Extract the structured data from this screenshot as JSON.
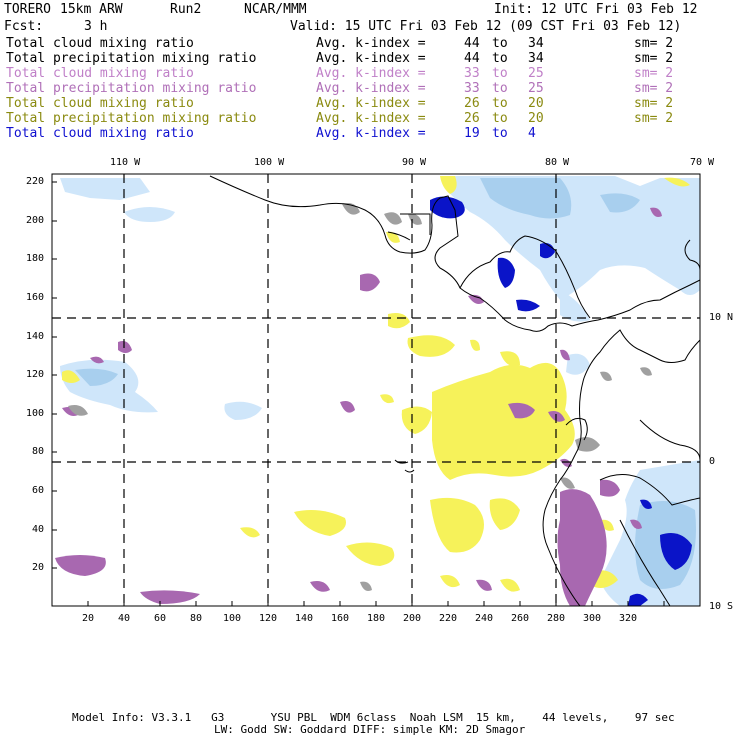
{
  "header": {
    "model": "TORERO",
    "resolution": "15km ARW",
    "run": "Run2",
    "org": "NCAR/MMM",
    "init": "Init: 12 UTC Fri 03 Feb 12",
    "fcst_label": "Fcst:",
    "fcst_value": "3 h",
    "valid": "Valid: 15 UTC Fri 03 Feb 12 (09 CST Fri 03 Feb 12)"
  },
  "legend": [
    {
      "field": "Total cloud mixing ratio",
      "kindex": "Avg. k-index =",
      "from": "44",
      "to_word": "to",
      "to": "34",
      "sm": "sm= 2",
      "color": "#000000"
    },
    {
      "field": "Total precipitation mixing ratio",
      "kindex": "Avg. k-index =",
      "from": "44",
      "to_word": "to",
      "to": "34",
      "sm": "sm= 2",
      "color": "#000000"
    },
    {
      "field": "Total cloud mixing ratio",
      "kindex": "Avg. k-index =",
      "from": "33",
      "to_word": "to",
      "to": "25",
      "sm": "sm= 2",
      "color": "#c080c8"
    },
    {
      "field": "Total precipitation mixing ratio",
      "kindex": "Avg. k-index =",
      "from": "33",
      "to_word": "to",
      "to": "25",
      "sm": "sm= 2",
      "color": "#b070b8"
    },
    {
      "field": "Total cloud mixing ratio",
      "kindex": "Avg. k-index =",
      "from": "26",
      "to_word": "to",
      "to": "20",
      "sm": "sm= 2",
      "color": "#8a8a10"
    },
    {
      "field": "Total precipitation mixing ratio",
      "kindex": "Avg. k-index =",
      "from": "26",
      "to_word": "to",
      "to": "20",
      "sm": "sm= 2",
      "color": "#8a8a10"
    },
    {
      "field": "Total cloud mixing ratio",
      "kindex": "Avg. k-index =",
      "from": "19",
      "to_word": "to",
      "to": "4",
      "sm": "",
      "color": "#1010d0"
    }
  ],
  "axes": {
    "top_lon": [
      "110 W",
      "100 W",
      "90 W",
      "80 W",
      "70 W"
    ],
    "right_lat": [
      "10 N",
      "0",
      "10 S"
    ],
    "left_y": [
      "220",
      "200",
      "180",
      "160",
      "140",
      "120",
      "100",
      "80",
      "60",
      "40",
      "20"
    ],
    "bottom_x": [
      "20",
      "40",
      "60",
      "80",
      "100",
      "120",
      "140",
      "160",
      "180",
      "200",
      "220",
      "240",
      "260",
      "280",
      "300",
      "320"
    ]
  },
  "footer": {
    "line1": "Model Info: V3.3.1   G3       YSU PBL  WDM 6class  Noah LSM  15 km,    44 levels,    97 sec",
    "line2": "LW: Godd SW: Goddard DIFF: simple KM: 2D Smagor"
  },
  "colors": {
    "cloud_light": "#cfe6fa",
    "cloud_mid": "#a8cfee",
    "cloud_dark": "#0a14c8",
    "purple": "#a868b0",
    "yellow": "#f6f25a",
    "gray": "#a0a0a0"
  }
}
